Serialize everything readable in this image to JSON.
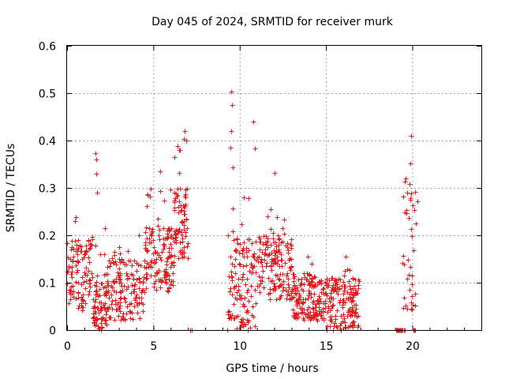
{
  "chart_data": {
    "type": "scatter",
    "title": "Day 045 of 2024, SRMTID for receiver murk",
    "xlabel": "GPS time / hours",
    "ylabel": "SRMTID / TECUs",
    "xlim": [
      0,
      24
    ],
    "ylim": [
      0,
      0.6
    ],
    "xticks": [
      0,
      5,
      10,
      15,
      20
    ],
    "xtick_labels": [
      "0",
      "5",
      "10",
      "15",
      "20"
    ],
    "yticks": [
      0,
      0.1,
      0.2,
      0.3,
      0.4,
      0.5,
      0.6
    ],
    "ytick_labels": [
      "0",
      "0.1",
      "0.2",
      "0.3",
      "0.4",
      "0.5",
      "0.6"
    ],
    "grid": true,
    "marker": "+",
    "color": "#e41a1c",
    "series": [
      {
        "name": "SRMTID",
        "clusters": [
          {
            "start": 0.0,
            "end": 1.5,
            "y_low": 0.04,
            "y_high": 0.2,
            "y_max": 0.24,
            "count": 110
          },
          {
            "start": 1.5,
            "end": 2.3,
            "y_low": 0.0,
            "y_high": 0.1,
            "y_max": 0.22,
            "count": 80
          },
          {
            "start": 2.3,
            "end": 4.5,
            "y_low": 0.02,
            "y_high": 0.15,
            "y_max": 0.2,
            "count": 150
          },
          {
            "start": 4.5,
            "end": 6.2,
            "y_low": 0.08,
            "y_high": 0.22,
            "y_max": 0.3,
            "count": 140
          },
          {
            "start": 6.2,
            "end": 7.0,
            "y_low": 0.15,
            "y_high": 0.3,
            "y_max": 0.42,
            "count": 80
          },
          {
            "start": 9.3,
            "end": 11.0,
            "y_low": 0.0,
            "y_high": 0.2,
            "y_max": 0.35,
            "count": 130
          },
          {
            "start": 11.0,
            "end": 13.0,
            "y_low": 0.06,
            "y_high": 0.2,
            "y_max": 0.26,
            "count": 150
          },
          {
            "start": 13.0,
            "end": 15.0,
            "y_low": 0.02,
            "y_high": 0.12,
            "y_max": 0.17,
            "count": 170
          },
          {
            "start": 15.0,
            "end": 16.9,
            "y_low": 0.0,
            "y_high": 0.11,
            "y_max": 0.18,
            "count": 160
          },
          {
            "start": 19.4,
            "end": 20.2,
            "y_low": 0.03,
            "y_high": 0.3,
            "y_max": 0.35,
            "count": 40
          }
        ],
        "outliers": [
          {
            "x": 1.65,
            "y": 0.373
          },
          {
            "x": 1.68,
            "y": 0.36
          },
          {
            "x": 1.7,
            "y": 0.33
          },
          {
            "x": 1.72,
            "y": 0.29
          },
          {
            "x": 5.4,
            "y": 0.335
          },
          {
            "x": 6.8,
            "y": 0.42
          },
          {
            "x": 6.9,
            "y": 0.4
          },
          {
            "x": 9.5,
            "y": 0.503
          },
          {
            "x": 9.55,
            "y": 0.475
          },
          {
            "x": 9.5,
            "y": 0.42
          },
          {
            "x": 9.45,
            "y": 0.385
          },
          {
            "x": 10.8,
            "y": 0.44
          },
          {
            "x": 10.9,
            "y": 0.384
          },
          {
            "x": 12.0,
            "y": 0.332
          },
          {
            "x": 19.95,
            "y": 0.41
          },
          {
            "x": 19.9,
            "y": 0.352
          },
          {
            "x": 20.3,
            "y": 0.272
          }
        ],
        "zero_points": [
          7.15,
          7.2,
          9.3,
          19.05,
          19.1,
          19.15,
          19.2,
          19.25,
          19.3,
          19.35,
          19.4,
          19.45,
          19.5,
          19.55,
          20.05,
          20.1,
          20.15
        ]
      }
    ]
  }
}
